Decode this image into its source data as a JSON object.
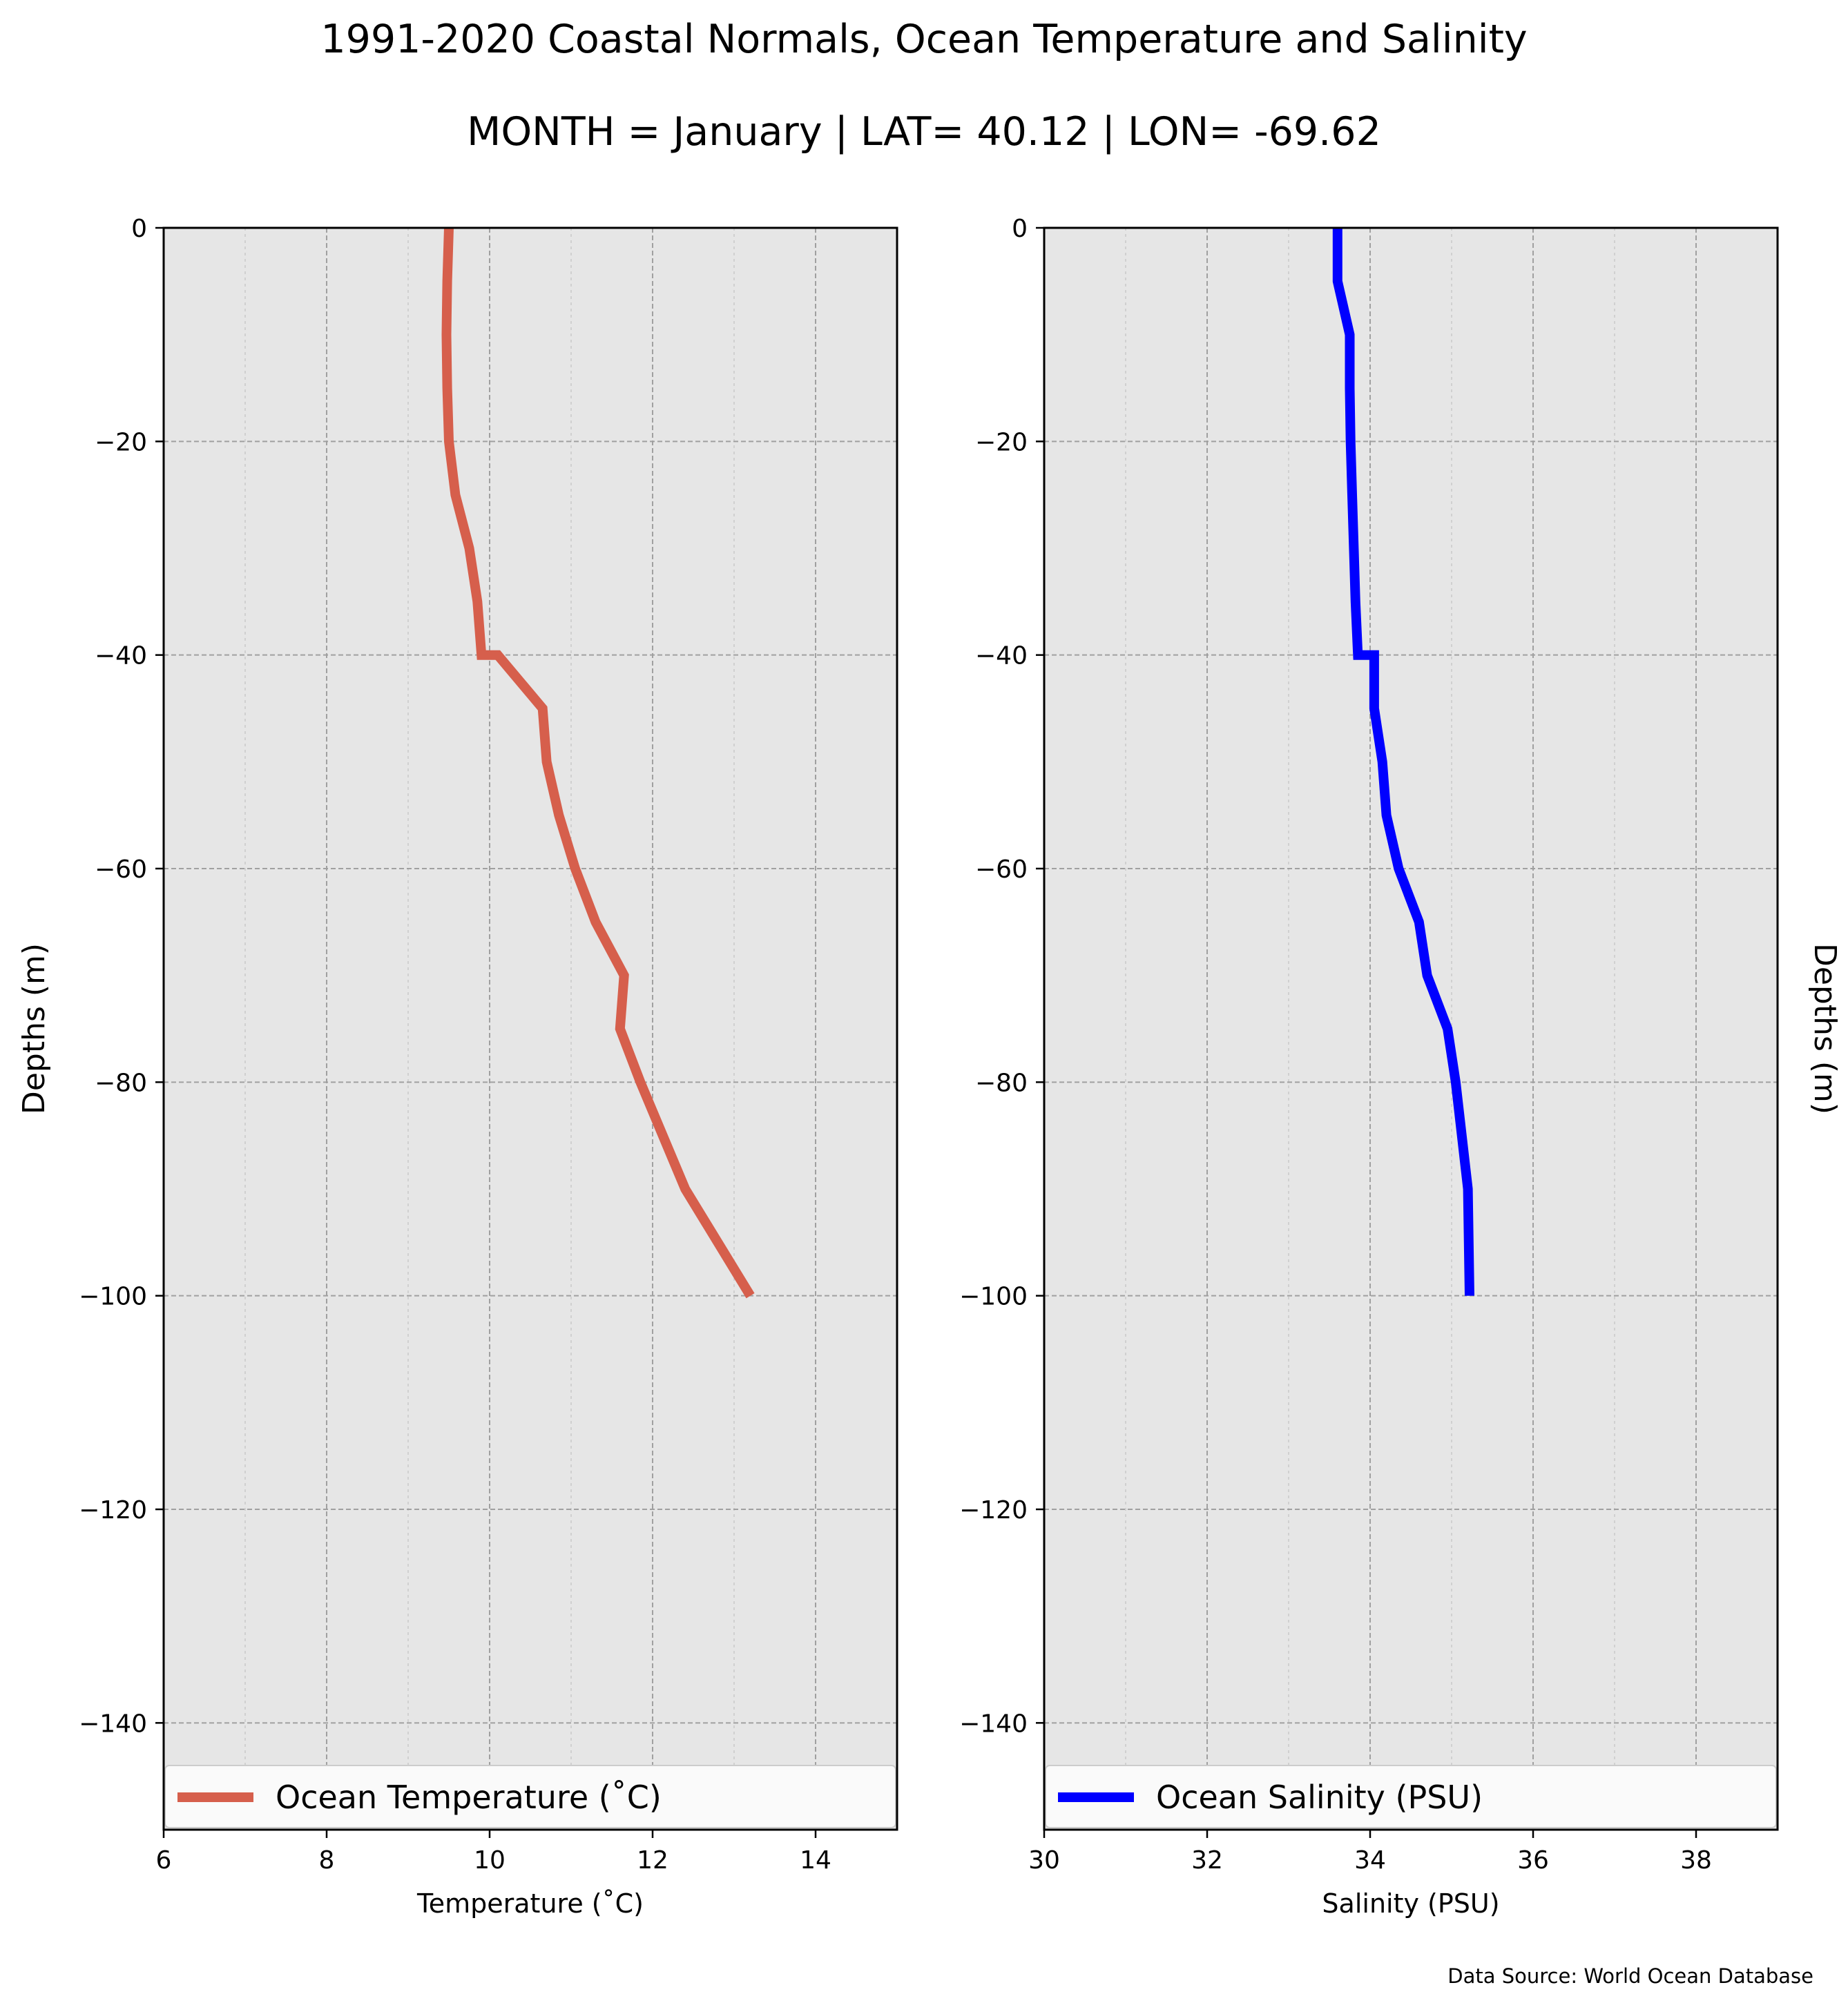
{
  "title": "1991-2020 Coastal Normals, Ocean Temperature and Salinity",
  "subtitle": "MONTH = January | LAT= 40.12 | LON= -69.62",
  "source": "Data Source: World Ocean Database",
  "colors": {
    "panel_bg": "#e6e6e6",
    "grid": "#a0a0a0",
    "temperature": "#d65f4c",
    "salinity": "#0000ff"
  },
  "chart_data": [
    {
      "type": "line",
      "xlabel": "Temperature (˚C)",
      "ylabel": "Depths (m)",
      "ylabel_side": "left",
      "xlim": [
        6,
        15
      ],
      "ylim": [
        -150,
        0
      ],
      "xticks": [
        6,
        8,
        10,
        12,
        14
      ],
      "xtick_labels": [
        "6",
        "8",
        "10",
        "12",
        "14"
      ],
      "yticks": [
        0,
        -20,
        -40,
        -60,
        -80,
        -100,
        -120,
        -140
      ],
      "ytick_labels": [
        "0",
        "−20",
        "−40",
        "−60",
        "−80",
        "−100",
        "−120",
        "−140"
      ],
      "grid": true,
      "legend_position": "bottom",
      "series": [
        {
          "name": "Ocean Temperature (˚C)",
          "x": [
            9.5,
            9.48,
            9.47,
            9.48,
            9.5,
            9.58,
            9.75,
            9.85,
            9.9,
            10.1,
            10.65,
            10.7,
            10.85,
            11.05,
            11.3,
            11.65,
            11.6,
            11.85,
            12.4,
            13.2
          ],
          "y": [
            0,
            -5,
            -10,
            -15,
            -20,
            -25,
            -30,
            -35,
            -40,
            -40,
            -45,
            -50,
            -55,
            -60,
            -65,
            -70,
            -75,
            -80,
            -90,
            -100
          ]
        }
      ]
    },
    {
      "type": "line",
      "xlabel": "Salinity (PSU)",
      "ylabel": "Depths (m)",
      "ylabel_side": "right",
      "xlim": [
        30,
        39
      ],
      "ylim": [
        -150,
        0
      ],
      "xticks": [
        30,
        32,
        34,
        36,
        38
      ],
      "xtick_labels": [
        "30",
        "32",
        "34",
        "36",
        "38"
      ],
      "yticks": [
        0,
        -20,
        -40,
        -60,
        -80,
        -100,
        -120,
        -140
      ],
      "ytick_labels": [
        "0",
        "−20",
        "−40",
        "−60",
        "−80",
        "−100",
        "−120",
        "−140"
      ],
      "grid": true,
      "legend_position": "bottom",
      "series": [
        {
          "name": "Ocean Salinity (PSU)",
          "x": [
            33.6,
            33.6,
            33.75,
            33.75,
            33.76,
            33.78,
            33.8,
            33.82,
            33.85,
            34.05,
            34.05,
            34.15,
            34.2,
            34.35,
            34.6,
            34.7,
            34.95,
            35.05,
            35.2,
            35.22
          ],
          "y": [
            0,
            -5,
            -10,
            -15,
            -20,
            -25,
            -30,
            -35,
            -40,
            -40,
            -45,
            -50,
            -55,
            -60,
            -65,
            -70,
            -75,
            -80,
            -90,
            -100
          ]
        }
      ]
    }
  ]
}
